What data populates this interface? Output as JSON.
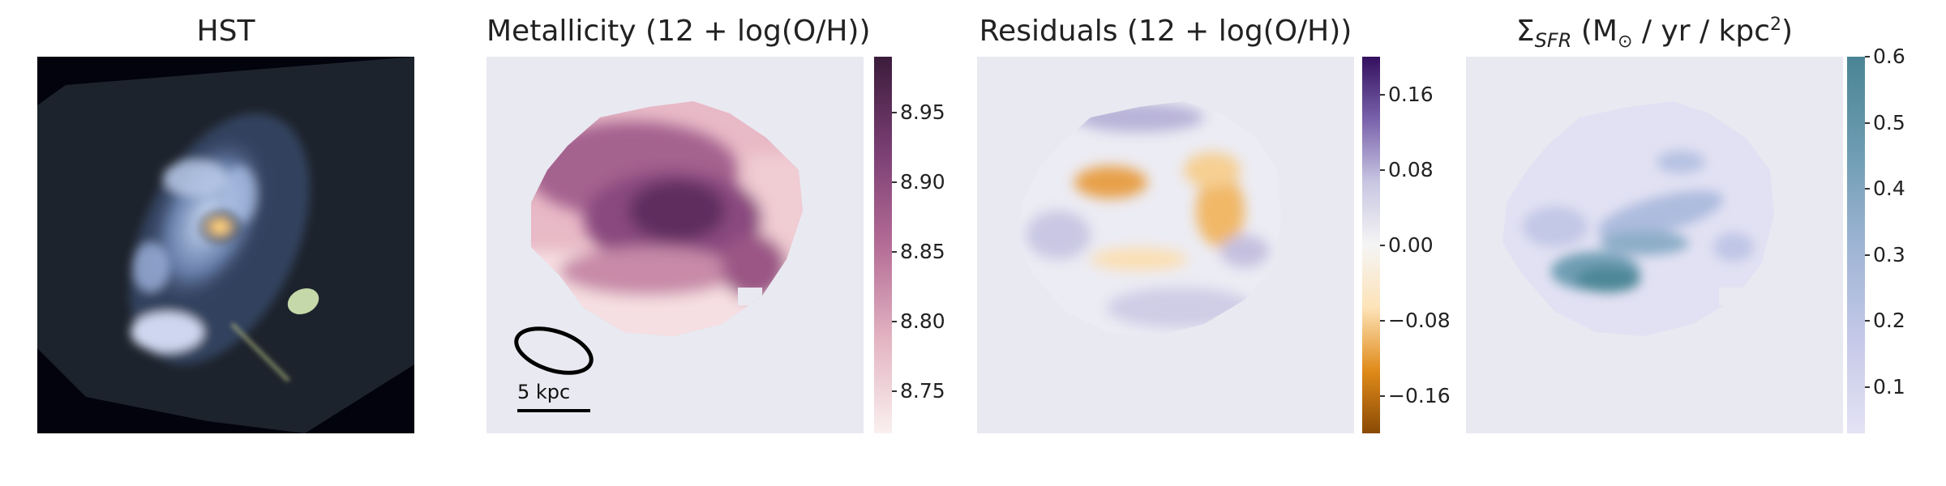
{
  "panels": [
    {
      "id": "hst",
      "title": "HST"
    },
    {
      "id": "metallicity",
      "title": "Metallicity (12 + log(O/H))",
      "colorbar": {
        "min": 8.72,
        "max": 8.99,
        "ticks": [
          "8.95",
          "8.90",
          "8.85",
          "8.80",
          "8.75"
        ],
        "colors": [
          "#faf0f0",
          "#e3b4c2",
          "#b46c96",
          "#7a3e73",
          "#3b1c3c"
        ]
      },
      "annotations": {
        "scale_label": "5 kpc"
      }
    },
    {
      "id": "residuals",
      "title": "Residuals (12 + log(O/H))",
      "colorbar": {
        "min": -0.2,
        "max": 0.2,
        "ticks": [
          "0.16",
          "0.08",
          "0.00",
          "−0.08",
          "−0.16"
        ],
        "colors": [
          "#8a4a05",
          "#e08b1a",
          "#fde3b8",
          "#f5f5f5",
          "#c8c6e2",
          "#7a62ac",
          "#33105e"
        ]
      }
    },
    {
      "id": "sfr",
      "title_main": "Σ",
      "title_sub": "SFR",
      "title_rest": " (M",
      "title_sun": "⊙",
      "title_tail": " / yr / kpc",
      "title_sup": "2",
      "title_close": ")",
      "colorbar": {
        "min": 0.03,
        "max": 0.6,
        "ticks": [
          "0.6",
          "0.5",
          "0.4",
          "0.3",
          "0.2",
          "0.1"
        ],
        "colors": [
          "#e4e2f4",
          "#c5c9e8",
          "#9eb4d4",
          "#6d9cb2",
          "#4a8494"
        ]
      }
    }
  ],
  "chart_data": [
    {
      "type": "heatmap",
      "title": "HST"
    },
    {
      "type": "heatmap",
      "title": "Metallicity (12 + log(O/H))",
      "colorbar_range": [
        8.72,
        8.99
      ],
      "colorbar_ticks": [
        8.75,
        8.8,
        8.85,
        8.9,
        8.95
      ]
    },
    {
      "type": "heatmap",
      "title": "Residuals (12 + log(O/H))",
      "colorbar_range": [
        -0.2,
        0.2
      ],
      "colorbar_ticks": [
        -0.16,
        -0.08,
        0.0,
        0.08,
        0.16
      ]
    },
    {
      "type": "heatmap",
      "title": "ΣSFR (M⊙ / yr / kpc2)",
      "colorbar_range": [
        0.03,
        0.6
      ],
      "colorbar_ticks": [
        0.1,
        0.2,
        0.3,
        0.4,
        0.5,
        0.6
      ]
    }
  ]
}
